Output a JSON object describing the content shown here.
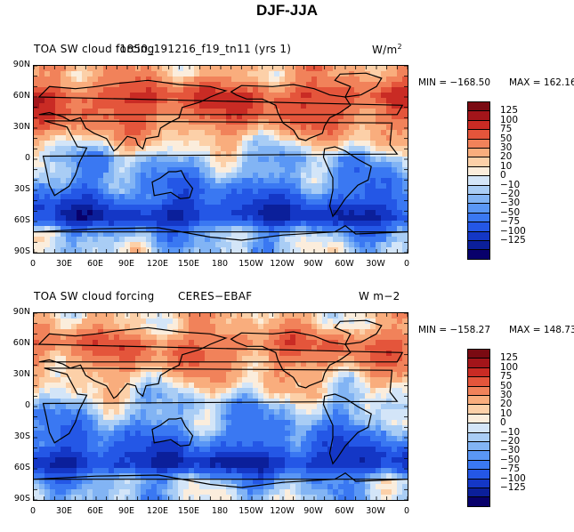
{
  "page_title": "DJF-JJA",
  "colors": {
    "levels_colors": [
      "#08006b",
      "#0b1f9a",
      "#1437c6",
      "#2457e6",
      "#3a78f2",
      "#5a97f5",
      "#82b4f4",
      "#a9cdf5",
      "#d3e5f8",
      "#fbeddc",
      "#fcd0a8",
      "#f9ad7d",
      "#f1825a",
      "#e4553b",
      "#c92b24",
      "#a3151a",
      "#7a0a12"
    ]
  },
  "chart_data": [
    {
      "type": "heatmap",
      "title_left": "TOA SW cloud forcing",
      "title_center": "f1850_191216_f19_tn11 (yrs 1)",
      "title_right_base": "W/m",
      "title_right_sup": "2",
      "min_label": "MIN = −168.50",
      "max_label": "MAX = 162.16",
      "min": -168.5,
      "max": 162.16,
      "units": "W/m2",
      "y_ticks": [
        "90N",
        "60N",
        "30N",
        "0",
        "30S",
        "60S",
        "90S"
      ],
      "x_ticks": [
        "0",
        "30E",
        "60E",
        "90E",
        "120E",
        "150E",
        "180",
        "150W",
        "120W",
        "90W",
        "60W",
        "30W",
        "0"
      ],
      "levels": [
        "125",
        "100",
        "75",
        "50",
        "30",
        "20",
        "10",
        "0",
        "−10",
        "−20",
        "−30",
        "−50",
        "−75",
        "−100",
        "−125"
      ],
      "zonal_mean_profile": [
        {
          "lat": 80,
          "value": 40
        },
        {
          "lat": 60,
          "value": 100
        },
        {
          "lat": 40,
          "value": 75
        },
        {
          "lat": 20,
          "value": 30
        },
        {
          "lat": 0,
          "value": -10
        },
        {
          "lat": -15,
          "value": -20
        },
        {
          "lat": -35,
          "value": -50
        },
        {
          "lat": -55,
          "value": -100
        },
        {
          "lat": -70,
          "value": -20
        },
        {
          "lat": -85,
          "value": -5
        }
      ]
    },
    {
      "type": "heatmap",
      "title_left": "TOA SW cloud forcing",
      "title_center": "CERES−EBAF",
      "title_right": "W m−2",
      "min_label": "MIN = −158.27",
      "max_label": "MAX = 148.73",
      "min": -158.27,
      "max": 148.73,
      "units": "W m-2",
      "y_ticks": [
        "90N",
        "60N",
        "30N",
        "0",
        "30S",
        "60S",
        "90S"
      ],
      "x_ticks": [
        "0",
        "30E",
        "60E",
        "90E",
        "120E",
        "150E",
        "180",
        "150W",
        "120W",
        "90W",
        "60W",
        "30W",
        "0"
      ],
      "levels": [
        "125",
        "100",
        "75",
        "50",
        "30",
        "20",
        "10",
        "0",
        "−10",
        "−20",
        "−30",
        "−50",
        "−75",
        "−100",
        "−125"
      ],
      "zonal_mean_profile": [
        {
          "lat": 80,
          "value": 30
        },
        {
          "lat": 60,
          "value": 75
        },
        {
          "lat": 40,
          "value": 50
        },
        {
          "lat": 20,
          "value": 20
        },
        {
          "lat": 0,
          "value": -10
        },
        {
          "lat": -15,
          "value": -20
        },
        {
          "lat": -35,
          "value": -50
        },
        {
          "lat": -55,
          "value": -100
        },
        {
          "lat": -70,
          "value": -20
        },
        {
          "lat": -85,
          "value": -5
        }
      ]
    }
  ]
}
